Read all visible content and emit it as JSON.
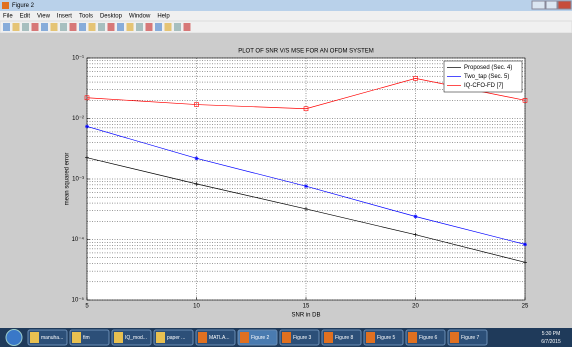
{
  "window": {
    "title": "Figure 2"
  },
  "menu": [
    "File",
    "Edit",
    "View",
    "Insert",
    "Tools",
    "Desktop",
    "Window",
    "Help"
  ],
  "taskbar": {
    "items": [
      "manuha...",
      "fim",
      "IQ_mod...",
      "paper ...",
      "MATLA...",
      "Figure 2",
      "Figure 3",
      "Figure 8",
      "Figure 5",
      "Figure 6",
      "Figure 7"
    ],
    "time": "5:30 PM",
    "date": "6/7/2015"
  },
  "chart_data": {
    "type": "line",
    "title": "PLOT OF SNR V/S MSE FOR AN OFDM SYSTEM",
    "xlabel": "SNR in DB",
    "ylabel": "mean squared error",
    "x": [
      5,
      10,
      15,
      20,
      25
    ],
    "xlim": [
      5,
      25
    ],
    "xticks": [
      5,
      10,
      15,
      20,
      25
    ],
    "ylim": [
      1e-05,
      0.1
    ],
    "ylog": true,
    "yticks": [
      {
        "value": 0.1,
        "label": "10⁻¹"
      },
      {
        "value": 0.01,
        "label": "10⁻²"
      },
      {
        "value": 0.001,
        "label": "10⁻³"
      },
      {
        "value": 0.0001,
        "label": "10⁻⁴"
      },
      {
        "value": 1e-05,
        "label": "10⁻⁵"
      }
    ],
    "grid": true,
    "minor_grid": true,
    "legend": "upper right",
    "series": [
      {
        "name": "Proposed (Sec. 4)",
        "color": "#000000",
        "marker": "plus",
        "values": [
          0.00225,
          0.00083,
          0.00032,
          0.00012,
          4.2e-05
        ]
      },
      {
        "name": "Two_tap (Sec. 5)",
        "color": "#0000ff",
        "marker": "star",
        "values": [
          0.0074,
          0.0022,
          0.00076,
          0.00024,
          8.3e-05
        ]
      },
      {
        "name": "IQ-CFO-FD [7]",
        "color": "#ff0000",
        "marker": "square",
        "values": [
          0.022,
          0.017,
          0.0145,
          0.046,
          0.02
        ]
      }
    ]
  }
}
